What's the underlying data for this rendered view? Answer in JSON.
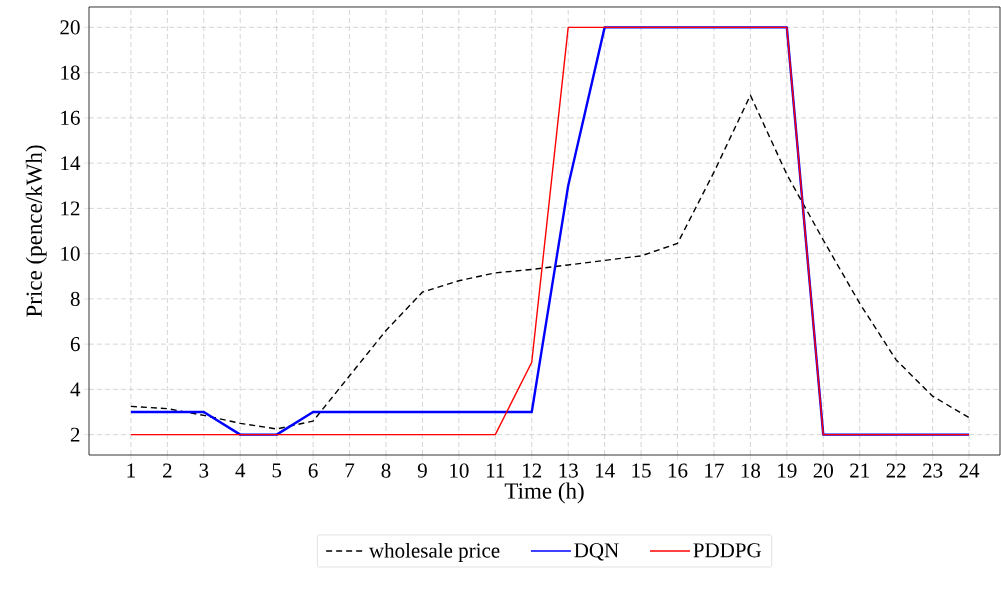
{
  "chart_data": {
    "type": "line",
    "xlabel": "Time (h)",
    "ylabel": "Price (pence/kWh)",
    "x": [
      1,
      2,
      3,
      4,
      5,
      6,
      7,
      8,
      9,
      10,
      11,
      12,
      13,
      14,
      15,
      16,
      17,
      18,
      19,
      20,
      21,
      22,
      23,
      24
    ],
    "series": [
      {
        "name": "wholesale price",
        "color": "#000000",
        "line_style": "dashed",
        "values": [
          3.25,
          3.15,
          2.85,
          2.5,
          2.25,
          2.6,
          4.6,
          6.6,
          8.3,
          8.8,
          9.15,
          9.3,
          9.5,
          9.7,
          9.9,
          10.45,
          13.6,
          17,
          13.5,
          10.6,
          7.8,
          5.3,
          3.7,
          2.75
        ]
      },
      {
        "name": "DQN",
        "color": "#0000ff",
        "line_style": "solid",
        "values": [
          3,
          3,
          3,
          2,
          2,
          3,
          3,
          3,
          3,
          3,
          3,
          3,
          13,
          20,
          20,
          20,
          20,
          20,
          20,
          2,
          2,
          2,
          2,
          2
        ]
      },
      {
        "name": "PDDPG",
        "color": "#ff0000",
        "line_style": "solid",
        "values": [
          2,
          2,
          2,
          2,
          2,
          2,
          2,
          2,
          2,
          2,
          2,
          5.2,
          20,
          20,
          20,
          20,
          20,
          20,
          20,
          2,
          2,
          2,
          2,
          2
        ]
      }
    ],
    "xlim": [
      -0.15,
      24.85
    ],
    "ylim": [
      1.1,
      20.9
    ],
    "xticks": [
      1,
      2,
      3,
      4,
      5,
      6,
      7,
      8,
      9,
      10,
      11,
      12,
      13,
      14,
      15,
      16,
      17,
      18,
      19,
      20,
      21,
      22,
      23,
      24
    ],
    "yticks": [
      2,
      4,
      6,
      8,
      10,
      12,
      14,
      16,
      18,
      20
    ],
    "grid": true,
    "legend": "bottom"
  }
}
